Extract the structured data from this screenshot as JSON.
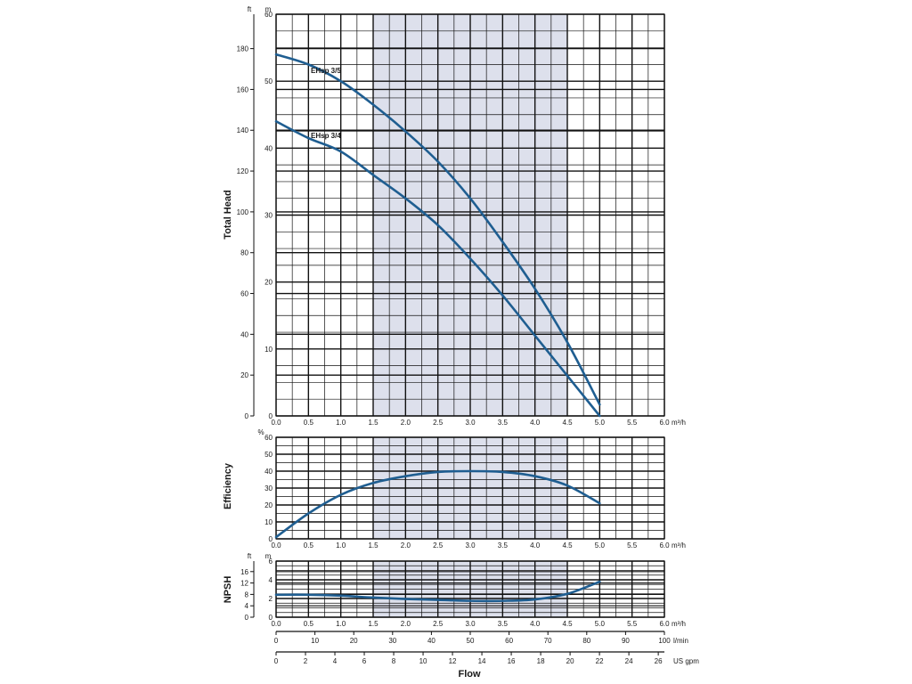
{
  "colors": {
    "curve": "#1f5e91",
    "band": "#dde0ec",
    "grid": "#111111"
  },
  "chart_data": [
    {
      "name": "total-head",
      "type": "line",
      "ylabel": "Total Head",
      "x_unit": "m³/h",
      "xlim": [
        0,
        6
      ],
      "xticks": [
        "0.0",
        "0.5",
        "1.0",
        "1.5",
        "2.0",
        "2.5",
        "3.0",
        "3.5",
        "4.0",
        "4.5",
        "5.0",
        "5.5",
        "6.0"
      ],
      "ylim_m": [
        0,
        60
      ],
      "y_unit_m": "m",
      "yticks_m": [
        "0",
        "10",
        "20",
        "30",
        "40",
        "50",
        "60"
      ],
      "y_unit_ft": "ft",
      "yticks_ft": [
        "0",
        "20",
        "40",
        "60",
        "80",
        "100",
        "120",
        "140",
        "160",
        "180"
      ],
      "shaded_range": [
        1.5,
        4.5
      ],
      "grid": true,
      "series": [
        {
          "name": "EHsp 3/5",
          "x": [
            0,
            0.5,
            1.0,
            1.5,
            2.0,
            2.5,
            3.0,
            3.5,
            4.0,
            4.5,
            5.0
          ],
          "y": [
            54,
            52.5,
            50,
            46.5,
            42.5,
            38,
            32.5,
            26,
            19,
            11,
            1.7
          ]
        },
        {
          "name": "EHsp 3/4",
          "x": [
            0,
            0.5,
            1.0,
            1.5,
            2.0,
            2.5,
            3.0,
            3.5,
            4.0,
            4.5,
            5.0
          ],
          "y": [
            44,
            41.5,
            39.5,
            36,
            32.5,
            28.5,
            23.5,
            18,
            12,
            6,
            0
          ]
        }
      ]
    },
    {
      "name": "efficiency",
      "type": "line",
      "ylabel": "Efficiency",
      "y_unit": "%",
      "xlim": [
        0,
        6
      ],
      "x_unit": "m³/h",
      "xticks": [
        "0.0",
        "0.5",
        "1.0",
        "1.5",
        "2.0",
        "2.5",
        "3.0",
        "3.5",
        "4.0",
        "4.5",
        "5.0",
        "5.5",
        "6.0"
      ],
      "ylim": [
        0,
        60
      ],
      "yticks": [
        "0",
        "10",
        "20",
        "30",
        "40",
        "50",
        "60"
      ],
      "shaded_range": [
        1.5,
        4.5
      ],
      "grid": true,
      "series": [
        {
          "x": [
            0,
            0.5,
            1.0,
            1.5,
            2.0,
            2.5,
            3.0,
            3.5,
            4.0,
            4.5,
            5.0
          ],
          "y": [
            1,
            15,
            26,
            33,
            37,
            39.5,
            40,
            39.5,
            37,
            31.5,
            21
          ]
        }
      ]
    },
    {
      "name": "npsh",
      "type": "line",
      "ylabel": "NPSH",
      "xlim": [
        0,
        6
      ],
      "x_unit": "m³/h",
      "xticks": [
        "0.0",
        "0.5",
        "1.0",
        "1.5",
        "2.0",
        "2.5",
        "3.0",
        "3.5",
        "4.0",
        "4.5",
        "5.0",
        "5.5",
        "6.0"
      ],
      "ylim_m": [
        0,
        6
      ],
      "y_unit_m": "m",
      "yticks_m": [
        "0",
        "2",
        "4",
        "6"
      ],
      "y_unit_ft": "ft",
      "yticks_ft": [
        "0",
        "4",
        "8",
        "12",
        "16"
      ],
      "shaded_range": [
        1.5,
        4.5
      ],
      "grid": true,
      "series": [
        {
          "x": [
            0,
            0.5,
            1.0,
            1.5,
            2.0,
            2.5,
            3.0,
            3.5,
            4.0,
            4.5,
            5.0
          ],
          "y": [
            2.4,
            2.4,
            2.3,
            2.1,
            1.95,
            1.85,
            1.75,
            1.75,
            1.9,
            2.5,
            3.8
          ]
        }
      ]
    }
  ],
  "flow_axes": {
    "title": "Flow",
    "lpm": {
      "unit": "l/min",
      "max": 100,
      "ticks": [
        "0",
        "10",
        "20",
        "30",
        "40",
        "50",
        "60",
        "70",
        "80",
        "90",
        "100"
      ]
    },
    "gpm": {
      "unit": "US gpm",
      "max": 26,
      "ticks": [
        "0",
        "2",
        "4",
        "6",
        "8",
        "10",
        "12",
        "14",
        "16",
        "18",
        "20",
        "22",
        "24",
        "26"
      ]
    }
  }
}
